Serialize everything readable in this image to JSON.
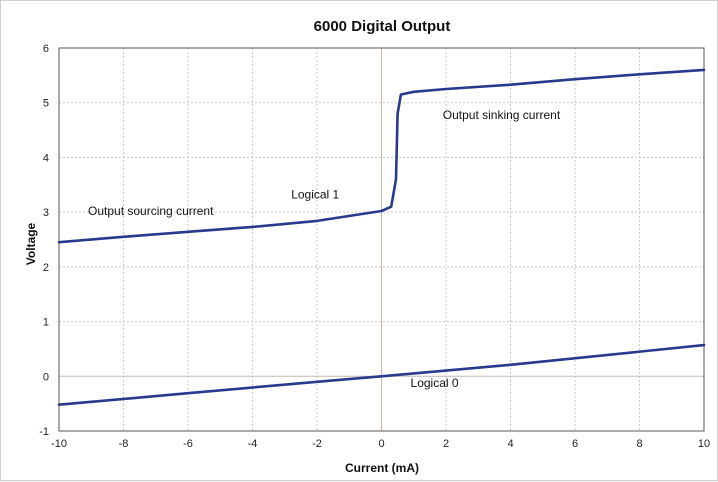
{
  "chart_data": {
    "type": "line",
    "title": "6000 Digital Output",
    "xlabel": "Current (mA)",
    "ylabel": "Voltage",
    "xlim": [
      -10,
      10
    ],
    "ylim": [
      -1,
      6
    ],
    "xticks": [
      -10,
      -8,
      -6,
      -4,
      -2,
      0,
      2,
      4,
      6,
      8,
      10
    ],
    "yticks": [
      -1,
      0,
      1,
      2,
      3,
      4,
      5,
      6
    ],
    "grid": true,
    "line_color": "#283a8e",
    "series": [
      {
        "points": [
          [
            -10,
            2.45
          ],
          [
            -8,
            2.55
          ],
          [
            -6,
            2.64
          ],
          [
            -4,
            2.73
          ],
          [
            -2,
            2.84
          ],
          [
            0,
            3.02
          ],
          [
            0.3,
            3.1
          ],
          [
            0.45,
            3.6
          ],
          [
            0.5,
            4.8
          ],
          [
            0.6,
            5.15
          ],
          [
            1,
            5.2
          ],
          [
            2,
            5.25
          ],
          [
            4,
            5.33
          ],
          [
            6,
            5.43
          ],
          [
            8,
            5.52
          ],
          [
            10,
            5.6
          ]
        ]
      },
      {
        "points": [
          [
            -10,
            -0.52
          ],
          [
            -6,
            -0.31
          ],
          [
            -2,
            -0.1
          ],
          [
            0,
            0.0
          ],
          [
            4,
            0.21
          ],
          [
            10,
            0.57
          ]
        ]
      }
    ],
    "annotations": [
      {
        "text": "Output sourcing current",
        "x": -9.1,
        "y": 2.95
      },
      {
        "text": "Logical 1",
        "x": -2.8,
        "y": 3.25
      },
      {
        "text": "Output sinking current",
        "x": 1.9,
        "y": 4.7
      },
      {
        "text": "Logical 0",
        "x": 0.9,
        "y": -0.2
      }
    ]
  }
}
